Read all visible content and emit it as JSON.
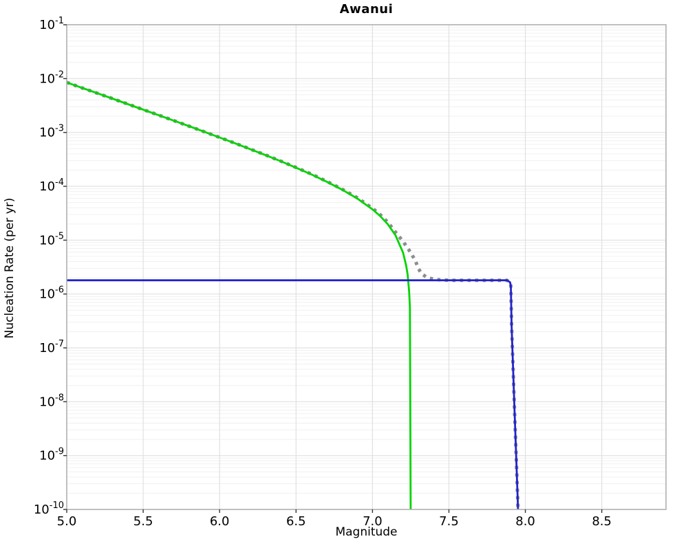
{
  "chart_data": {
    "type": "line",
    "title": "Awanui",
    "xlabel": "Magnitude",
    "ylabel": "Nucleation Rate (per yr)",
    "xlim": [
      5.0,
      8.92
    ],
    "ylim_exp": [
      -1,
      -10
    ],
    "xticks": [
      5.0,
      5.5,
      6.0,
      6.5,
      7.0,
      7.5,
      8.0,
      8.5
    ],
    "ytick_exponents": [
      -1,
      -2,
      -3,
      -4,
      -5,
      -6,
      -7,
      -8,
      -9,
      -10
    ],
    "grid": true,
    "legend": "none",
    "colors": {
      "total_dotted": "#8d8d8d",
      "gr_branch": "#00d400",
      "characteristic": "#2222cc",
      "grid_major": "#e0e0e0",
      "grid_minor": "#f0f0f0",
      "frame": "#aaaaaa",
      "tick": "#333333"
    },
    "series": [
      {
        "name": "total-rate-dotted",
        "color": "#8d8d8d",
        "style": "dotted",
        "width": 5,
        "points": [
          [
            5.0,
            0.0085
          ],
          [
            5.1,
            0.00674
          ],
          [
            5.2,
            0.00535
          ],
          [
            5.3,
            0.00424
          ],
          [
            5.4,
            0.00336
          ],
          [
            5.5,
            0.00266
          ],
          [
            5.6,
            0.00211
          ],
          [
            5.7,
            0.00166
          ],
          [
            5.8,
            0.00131
          ],
          [
            5.9,
            0.00103
          ],
          [
            6.0,
            0.000809
          ],
          [
            6.1,
            0.000633
          ],
          [
            6.2,
            0.000493
          ],
          [
            6.3,
            0.000382
          ],
          [
            6.4,
            0.000294
          ],
          [
            6.5,
            0.000224
          ],
          [
            6.6,
            0.000169
          ],
          [
            6.7,
            0.000124
          ],
          [
            6.8,
            8.92e-05
          ],
          [
            6.9,
            6.13e-05
          ],
          [
            7.0,
            3.92e-05
          ],
          [
            7.05,
            2.99e-05
          ],
          [
            7.1,
            2.16e-05
          ],
          [
            7.15,
            1.42e-05
          ],
          [
            7.2,
            9.5e-06
          ],
          [
            7.24,
            6.5e-06
          ],
          [
            7.28,
            4.2e-06
          ],
          [
            7.3,
            3e-06
          ],
          [
            7.32,
            2.4e-06
          ],
          [
            7.36,
            2e-06
          ],
          [
            7.42,
            1.85e-06
          ],
          [
            7.5,
            1.8e-06
          ],
          [
            7.88,
            1.8e-06
          ],
          [
            7.9,
            1.65e-06
          ],
          [
            7.905,
            1.4e-06
          ],
          [
            7.91,
            2.6e-07
          ],
          [
            7.92,
            4e-08
          ],
          [
            7.93,
            6.2e-09
          ],
          [
            7.94,
            9.5e-10
          ],
          [
            7.95,
            1.5e-10
          ],
          [
            7.952,
            1e-10
          ]
        ]
      },
      {
        "name": "gutenberg-richter-branch",
        "color": "#00d400",
        "style": "solid",
        "width": 2.8,
        "points": [
          [
            5.0,
            0.0085
          ],
          [
            5.1,
            0.00674
          ],
          [
            5.2,
            0.00535
          ],
          [
            5.3,
            0.00424
          ],
          [
            5.4,
            0.00335
          ],
          [
            5.5,
            0.00265
          ],
          [
            5.6,
            0.0021
          ],
          [
            5.7,
            0.00166
          ],
          [
            5.8,
            0.00131
          ],
          [
            5.9,
            0.00103
          ],
          [
            6.0,
            0.000807
          ],
          [
            6.1,
            0.000631
          ],
          [
            6.2,
            0.000491
          ],
          [
            6.3,
            0.00038
          ],
          [
            6.4,
            0.000292
          ],
          [
            6.5,
            0.000222
          ],
          [
            6.6,
            0.000167
          ],
          [
            6.7,
            0.000122
          ],
          [
            6.8,
            8.74e-05
          ],
          [
            6.9,
            5.95e-05
          ],
          [
            7.0,
            3.74e-05
          ],
          [
            7.05,
            2.81e-05
          ],
          [
            7.1,
            1.98e-05
          ],
          [
            7.15,
            1.24e-05
          ],
          [
            7.2,
            5.9e-06
          ],
          [
            7.22,
            3.4e-06
          ],
          [
            7.23,
            2.3e-06
          ],
          [
            7.24,
            1.1e-06
          ],
          [
            7.245,
            5.6e-07
          ],
          [
            7.25,
            1e-10
          ]
        ]
      },
      {
        "name": "characteristic-branch",
        "color": "#2222cc",
        "style": "solid",
        "width": 2.8,
        "points": [
          [
            5.0,
            1.8e-06
          ],
          [
            7.88,
            1.8e-06
          ],
          [
            7.9,
            1.65e-06
          ],
          [
            7.905,
            1.4e-06
          ],
          [
            7.91,
            2.6e-07
          ],
          [
            7.92,
            4e-08
          ],
          [
            7.93,
            6.2e-09
          ],
          [
            7.94,
            9.5e-10
          ],
          [
            7.95,
            1.5e-10
          ],
          [
            7.952,
            1e-10
          ]
        ]
      }
    ]
  }
}
